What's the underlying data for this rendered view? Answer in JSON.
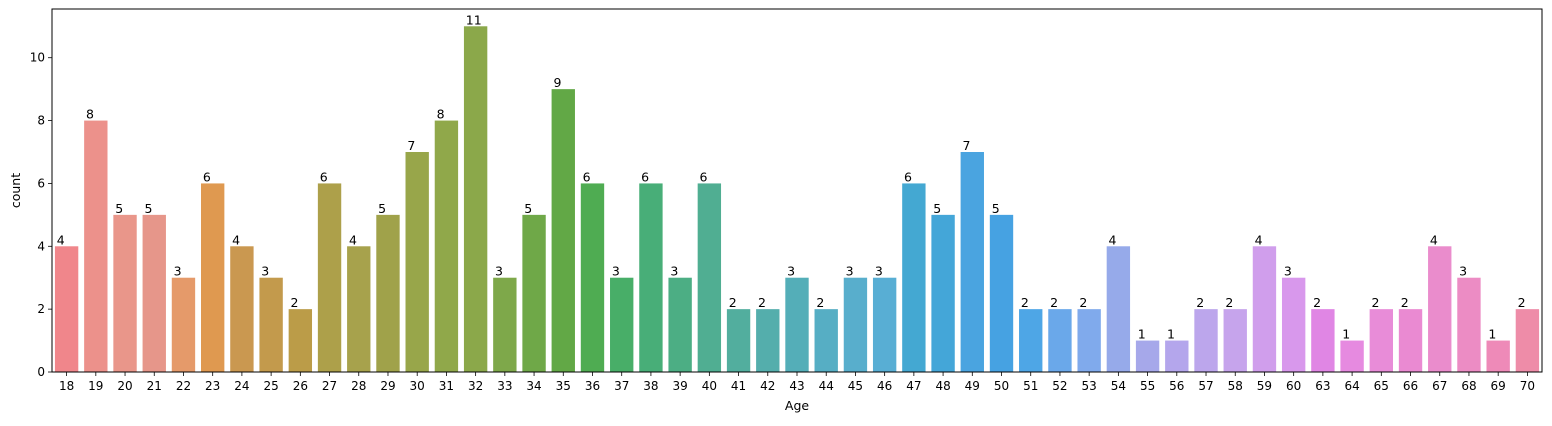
{
  "chart_data": {
    "type": "bar",
    "title": "",
    "xlabel": "Age",
    "ylabel": "count",
    "ylim": [
      0,
      11.55
    ],
    "yticks": [
      0,
      2,
      4,
      6,
      8,
      10
    ],
    "grid": false,
    "legend": "none",
    "categories": [
      "18",
      "19",
      "20",
      "21",
      "22",
      "23",
      "24",
      "25",
      "26",
      "27",
      "28",
      "29",
      "30",
      "31",
      "32",
      "33",
      "34",
      "35",
      "36",
      "37",
      "38",
      "39",
      "40",
      "41",
      "42",
      "43",
      "44",
      "45",
      "46",
      "47",
      "48",
      "49",
      "50",
      "51",
      "52",
      "53",
      "54",
      "55",
      "56",
      "57",
      "58",
      "59",
      "60",
      "63",
      "64",
      "65",
      "66",
      "67",
      "68",
      "69",
      "70"
    ],
    "values": [
      4,
      8,
      5,
      5,
      3,
      6,
      4,
      3,
      2,
      6,
      4,
      5,
      7,
      8,
      11,
      3,
      5,
      9,
      6,
      3,
      6,
      3,
      6,
      2,
      2,
      3,
      2,
      3,
      3,
      6,
      5,
      7,
      5,
      2,
      2,
      2,
      4,
      1,
      1,
      2,
      2,
      4,
      3,
      2,
      1,
      2,
      2,
      4,
      3,
      1,
      2
    ],
    "colors": [
      "#f0868b",
      "#ec918b",
      "#e9968a",
      "#e6968a",
      "#e59a6a",
      "#df9950",
      "#ca9850",
      "#c39a4c",
      "#bb9c48",
      "#ada04a",
      "#a7a24c",
      "#a0a24a",
      "#98a64a",
      "#90a84a",
      "#8ba84a",
      "#7ea84a",
      "#6fa848",
      "#62a846",
      "#4fac52",
      "#48ae68",
      "#48ae78",
      "#4cae84",
      "#50ae92",
      "#52ae9e",
      "#54aeac",
      "#54aeb8",
      "#56aec4",
      "#58aecc",
      "#58aed4",
      "#44a8d2",
      "#44a6d8",
      "#4aa4e0",
      "#46a2e2",
      "#4ea6e6",
      "#6aa8ea",
      "#80aaec",
      "#96aaea",
      "#a6a8ea",
      "#b4a6ec",
      "#bca6ec",
      "#c6a4ec",
      "#d09eec",
      "#d898ec",
      "#e086e4",
      "#e68ae0",
      "#e88cd8",
      "#ea8ad2",
      "#ea8ccc",
      "#ec8cc4",
      "#ee8ab8",
      "#ee8ca8"
    ]
  }
}
